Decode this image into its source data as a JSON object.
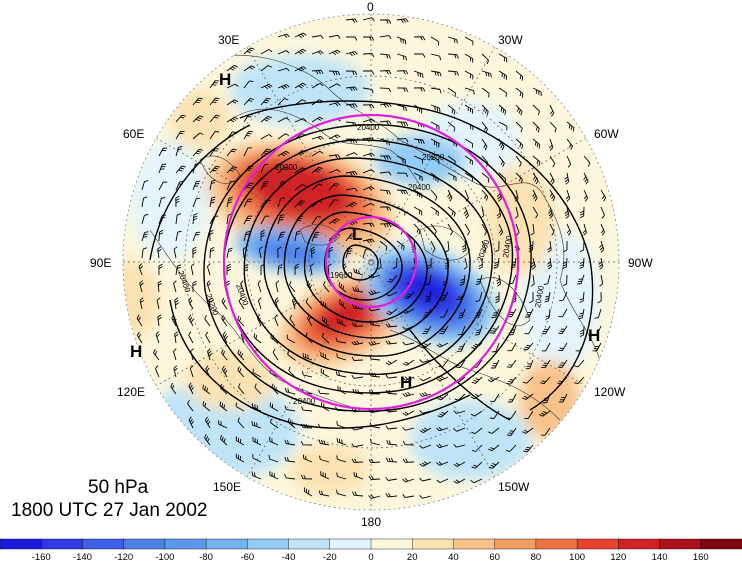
{
  "level_label": "50 hPa",
  "time_label": "1800 UTC 27 Jan 2002",
  "longitude_labels": {
    "lon_0": "0",
    "lon_30w": "30W",
    "lon_60w": "60W",
    "lon_90w": "90W",
    "lon_120w": "120W",
    "lon_150w": "150W",
    "lon_180": "180",
    "lon_150e": "150E",
    "lon_120e": "120E",
    "lon_90e": "90E",
    "lon_60e": "60E",
    "lon_30e": "30E"
  },
  "pressure_centers": {
    "h_northwest": "H",
    "h_west": "H",
    "h_east": "H",
    "h_south": "H",
    "l_pole": "L"
  },
  "contour_labels": {
    "c1": "20400",
    "c2": "20200",
    "c3": "20200",
    "c4": "20400",
    "c5": "20200",
    "c6": "20400",
    "c7": "20400",
    "c8": "20200",
    "c9": "20400",
    "c10": "20400",
    "c11": "20400",
    "c12": "19600"
  },
  "colorbar": {
    "ticks": [
      "-160",
      "-140",
      "-120",
      "-100",
      "-80",
      "-60",
      "-40",
      "-20",
      "0",
      "20",
      "40",
      "60",
      "80",
      "100",
      "120",
      "140",
      "160"
    ],
    "colors": [
      "#1a1adb",
      "#2e3ae6",
      "#3f5fe8",
      "#4f80ea",
      "#5d99ec",
      "#72b3f0",
      "#93ccf4",
      "#bfe4f8",
      "#e3f4fa",
      "#fcf7dc",
      "#fbe2b2",
      "#f8c38a",
      "#f4a062",
      "#ef7345",
      "#e5452f",
      "#d12326",
      "#a8131c",
      "#7e0710"
    ],
    "range": [
      -180,
      180
    ],
    "step": 20
  },
  "overlay_colors": {
    "contour": "#000000",
    "magenta_circles": "#e01ee0"
  }
}
